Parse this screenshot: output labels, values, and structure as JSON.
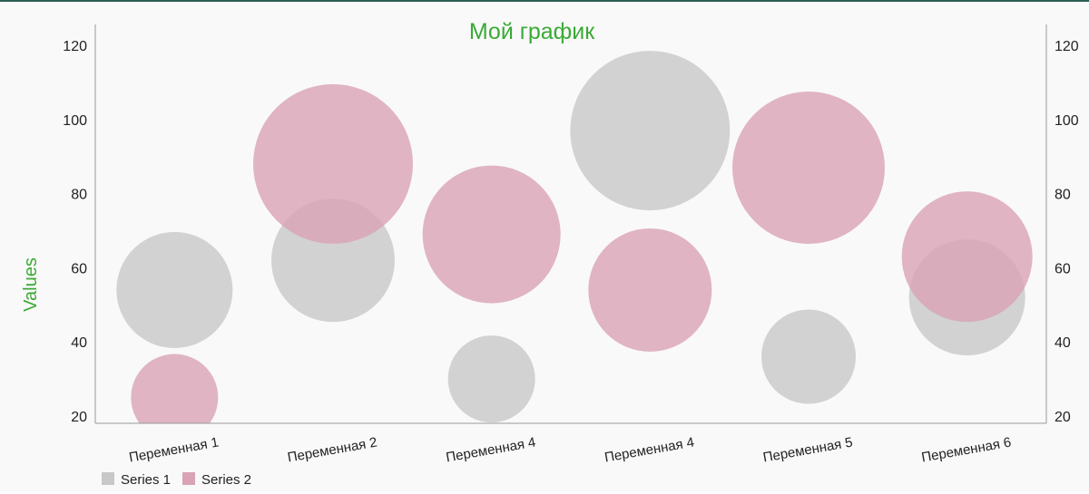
{
  "chart_data": {
    "type": "bubble",
    "title": "Мой график",
    "ylabel": "Values",
    "xlabel": "",
    "categories": [
      "Переменная 1",
      "Переменная 2",
      "Переменная 4",
      "Переменная 4",
      "Переменная 5",
      "Переменная 6"
    ],
    "ylim": [
      20,
      120
    ],
    "yticks": [
      20,
      40,
      60,
      80,
      100,
      120
    ],
    "y_axis_right": true,
    "grid": false,
    "legend_position": "bottom-left",
    "series": [
      {
        "name": "Series 1",
        "color": "#c8c8c8",
        "values": [
          54,
          62,
          30,
          97,
          36,
          52
        ],
        "sizes": [
          16,
          17,
          12,
          22,
          13,
          16
        ]
      },
      {
        "name": "Series 2",
        "color": "#d9a3b5",
        "values": [
          25,
          88,
          69,
          54,
          87,
          63
        ],
        "sizes": [
          12,
          22,
          19,
          17,
          21,
          18
        ]
      }
    ]
  },
  "colors": {
    "title": "#3aaa35",
    "ylabel": "#3aaa35",
    "axis": "#999999"
  }
}
